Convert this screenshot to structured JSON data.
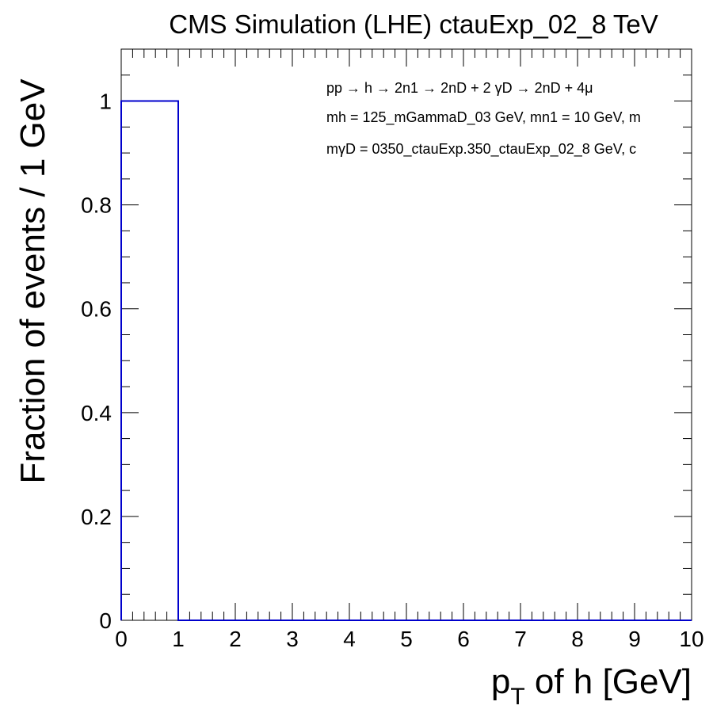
{
  "chart_data": {
    "type": "histogram",
    "title": "CMS Simulation (LHE) ctauExp_02_8 TeV",
    "xlabel": {
      "main": "p",
      "sub": "T",
      "rest": " of h [GeV]"
    },
    "ylabel": "Fraction of events / 1 GeV",
    "xlim": [
      0,
      10
    ],
    "ylim": [
      0,
      1.1
    ],
    "x_ticks": [
      0,
      1,
      2,
      3,
      4,
      5,
      6,
      7,
      8,
      9,
      10
    ],
    "x_tick_labels": [
      "0",
      "1",
      "2",
      "3",
      "4",
      "5",
      "6",
      "7",
      "8",
      "9",
      "10"
    ],
    "y_ticks": [
      0,
      0.2,
      0.4,
      0.6,
      0.8,
      1
    ],
    "y_tick_labels": [
      "0",
      "0.2",
      "0.4",
      "0.6",
      "0.8",
      "1"
    ],
    "series": [
      {
        "name": "pT of h",
        "color": "#0000cc",
        "bin_edges": [
          0,
          1,
          2,
          3,
          4,
          5,
          6,
          7,
          8,
          9,
          10
        ],
        "values": [
          1,
          0,
          0,
          0,
          0,
          0,
          0,
          0,
          0,
          0
        ]
      }
    ],
    "annotations": {
      "line1": {
        "text": "pp → h → 2n1 → 2nD + 2 γD → 2nD + 4μ"
      },
      "line2": {
        "text": "mh = 125_mGammaD_03 GeV, mn1 = 10 GeV, m"
      },
      "line3": {
        "text": "mγD = 0350_ctauExp.350_ctauExp_02_8 GeV, c"
      }
    }
  }
}
